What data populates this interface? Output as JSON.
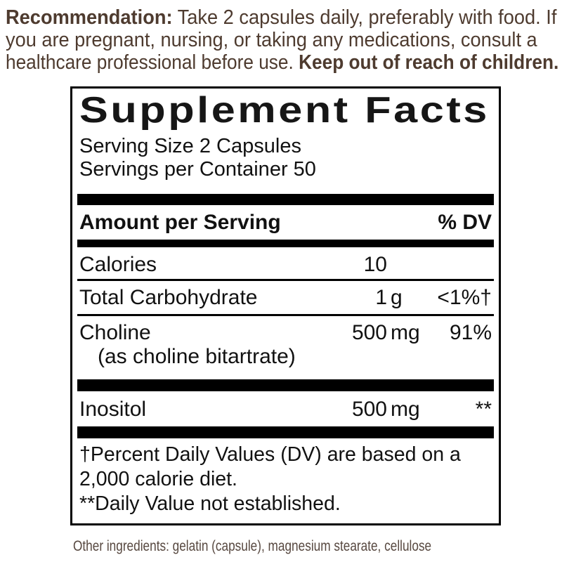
{
  "recommendation": {
    "line1_bold": "Recommendation:",
    "line1_rest": " Take 2 capsules daily, preferably with food. If",
    "line2": "you are pregnant, nursing, or taking any medications, consult a",
    "line3_rest": "healthcare professional before use. ",
    "line3_bold": "Keep out of reach of children."
  },
  "panel": {
    "title": "Supplement Facts",
    "serving_size": "Serving Size 2 Capsules",
    "servings_per_container": "Servings per Container 50",
    "header": {
      "amount_label": "Amount per Serving",
      "dv_label": "% DV"
    },
    "rows": [
      {
        "label": "Calories",
        "amount_num": "10",
        "amount_unit": "",
        "dv": ""
      },
      {
        "label": "Total Carbohydrate",
        "amount_num": "1",
        "amount_unit": "g",
        "dv": "<1%†"
      },
      {
        "label": "Choline",
        "sub_label": "(as choline bitartrate)",
        "amount_num": "500",
        "amount_unit": "mg",
        "dv": "91%"
      },
      {
        "label": "Inositol",
        "amount_num": "500",
        "amount_unit": "mg",
        "dv": "**"
      }
    ],
    "footnotes": {
      "line1": "†Percent Daily Values (DV) are based on a",
      "line2": "2,000 calorie diet.",
      "line3": "**Daily Value not established."
    }
  },
  "other_ingredients": "Other ingredients: gelatin (capsule), magnesium stearate, cellulose",
  "colors": {
    "text_brown": "#4e3b2f",
    "label_black": "#111111"
  }
}
